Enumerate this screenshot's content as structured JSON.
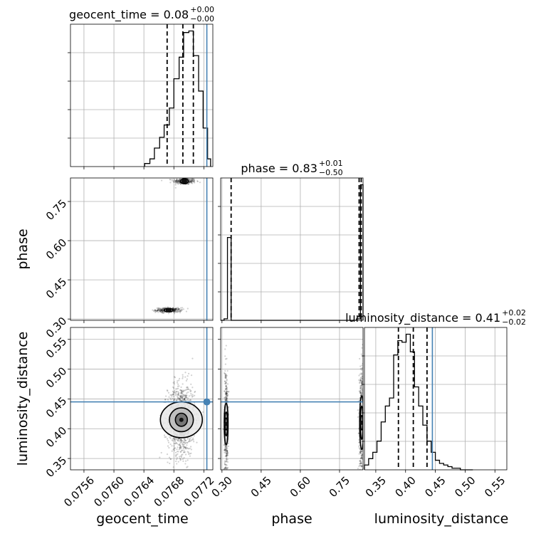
{
  "chart_data": {
    "type": "corner",
    "parameters": [
      "geocent_time",
      "phase",
      "luminosity_distance"
    ],
    "colors": {
      "truth": "#4682b4",
      "hist": "#000000",
      "grid": "#b0b0b0"
    },
    "truths": {
      "geocent_time": 0.07724,
      "phase": null,
      "luminosity_distance": 0.445
    },
    "diagonal": [
      {
        "param": "geocent_time",
        "title_main": "geocent_time = 0.08",
        "title_sup": "+0.00",
        "title_sub": "−0.00",
        "xlim": [
          0.07542,
          0.07732
        ],
        "quantiles": [
          0.07671,
          0.07692,
          0.07706
        ],
        "bin_edges": [
          0.07641,
          0.07648,
          0.07654,
          0.07661,
          0.07667,
          0.07674,
          0.0768,
          0.07687,
          0.07693,
          0.077,
          0.07706,
          0.07713,
          0.07719,
          0.07725,
          0.07729
        ],
        "counts": [
          2,
          5,
          12,
          19,
          27,
          38,
          57,
          71,
          87,
          88,
          72,
          49,
          25,
          5
        ]
      },
      {
        "param": "phase",
        "title_main": "phase = 0.83",
        "title_sup": "+0.01",
        "title_sub": "−0.50",
        "xlim": [
          0.295,
          0.84
        ],
        "quantiles": [
          0.335,
          0.825,
          0.833
        ],
        "bin_edges": [
          0.295,
          0.308,
          0.321,
          0.335,
          0.8,
          0.815,
          0.83,
          0.84
        ],
        "counts": [
          0,
          1,
          55,
          0,
          0,
          1,
          90
        ]
      },
      {
        "param": "luminosity_distance",
        "title_main": "luminosity_distance = 0.41",
        "title_sup": "+0.02",
        "title_sub": "−0.02",
        "xlim": [
          0.331,
          0.57
        ],
        "quantiles": [
          0.388,
          0.413,
          0.436
        ],
        "bin_edges": [
          0.331,
          0.338,
          0.345,
          0.352,
          0.359,
          0.366,
          0.373,
          0.38,
          0.387,
          0.394,
          0.401,
          0.408,
          0.415,
          0.422,
          0.429,
          0.436,
          0.443,
          0.45,
          0.457,
          0.464,
          0.471,
          0.478,
          0.485,
          0.492,
          0.499,
          0.506,
          0.513
        ],
        "counts": [
          3,
          7,
          11,
          18,
          30,
          40,
          45,
          72,
          81,
          80,
          85,
          74,
          52,
          40,
          28,
          18,
          11,
          6,
          4,
          3,
          2,
          1,
          1,
          0,
          0,
          0
        ]
      }
    ],
    "scatter_panels": [
      {
        "x": "geocent_time",
        "y": "phase",
        "ylim": [
          0.295,
          0.84
        ],
        "clusters": [
          {
            "cx": 0.07694,
            "cy": 0.8275,
            "sx": 7.5e-05,
            "sy": 0.006,
            "n": 260
          },
          {
            "cx": 0.07673,
            "cy": 0.334,
            "sx": 8.5e-05,
            "sy": 0.0045,
            "n": 320
          }
        ],
        "contours": [
          {
            "cx": 0.07694,
            "cy": 0.8275,
            "rx": [
              5e-05,
              3e-05,
              1.4e-05
            ],
            "ry": [
              0.01,
              0.0065,
              0.0035
            ]
          },
          {
            "cx": 0.07673,
            "cy": 0.334,
            "rx": [
              5.5e-05,
              3e-05,
              1.2e-05
            ],
            "ry": [
              0.0065,
              0.004,
              0.002
            ]
          }
        ]
      },
      {
        "x": "geocent_time",
        "y": "luminosity_distance",
        "ylim": [
          0.331,
          0.57
        ],
        "clusters": [
          {
            "cx": 0.0769,
            "cy": 0.415,
            "sx": 9e-05,
            "sy": 0.03,
            "n": 1100
          }
        ],
        "contours": [
          {
            "cx": 0.0769,
            "cy": 0.415,
            "rx": [
              0.00028,
              0.00016,
              8e-05
            ],
            "ry": [
              0.03,
              0.02,
              0.011
            ]
          }
        ]
      },
      {
        "x": "phase",
        "y": "luminosity_distance",
        "ylim": [
          0.331,
          0.57
        ],
        "clusters": [
          {
            "cx": 0.316,
            "cy": 0.41,
            "sx": 0.0035,
            "sy": 0.045,
            "n": 500
          },
          {
            "cx": 0.833,
            "cy": 0.41,
            "sx": 0.004,
            "sy": 0.045,
            "n": 500
          }
        ],
        "contours": [
          {
            "cx": 0.316,
            "cy": 0.408,
            "rx": [
              0.0075,
              0.0045,
              0.002
            ],
            "ry": [
              0.035,
              0.02,
              0.01
            ]
          },
          {
            "cx": 0.835,
            "cy": 0.41,
            "rx": [
              0.008,
              0.005,
              0.0025
            ],
            "ry": [
              0.045,
              0.028,
              0.012
            ]
          }
        ]
      }
    ],
    "ticks": {
      "geocent_time": [
        0.0756,
        0.076,
        0.0764,
        0.0768,
        0.0772
      ],
      "phase": [
        0.3,
        0.45,
        0.6,
        0.75
      ],
      "luminosity_distance": [
        0.35,
        0.4,
        0.45,
        0.5,
        0.55
      ]
    },
    "tick_labels": {
      "geocent_time": [
        "0.0756",
        "0.0760",
        "0.0764",
        "0.0768",
        "0.0772"
      ],
      "phase": [
        "0.30",
        "0.45",
        "0.60",
        "0.75"
      ],
      "luminosity_distance": [
        "0.35",
        "0.40",
        "0.45",
        "0.50",
        "0.55"
      ]
    },
    "axis_labels": {
      "x": [
        "geocent_time",
        "phase",
        "luminosity_distance"
      ],
      "y": [
        "phase",
        "luminosity_distance"
      ]
    },
    "grid": true
  }
}
